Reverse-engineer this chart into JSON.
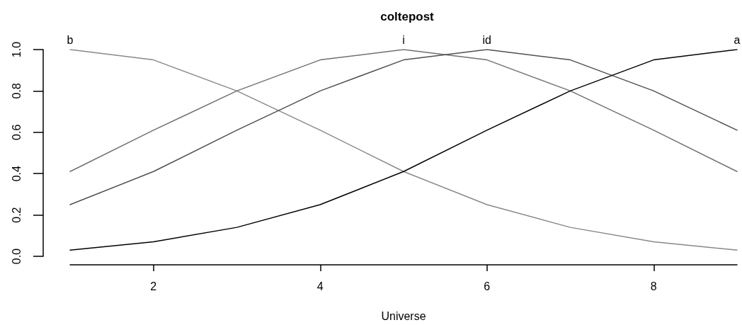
{
  "chart_data": {
    "type": "line",
    "title": "coltepost",
    "xlabel": "Universe",
    "x": [
      1,
      2,
      3,
      4,
      5,
      6,
      7,
      8,
      9
    ],
    "series": [
      {
        "name": "b",
        "color": "#888888",
        "values": [
          1.0,
          0.95,
          0.8,
          0.61,
          0.41,
          0.25,
          0.14,
          0.07,
          0.03
        ]
      },
      {
        "name": "i",
        "color": "#707070",
        "values": [
          0.41,
          0.61,
          0.8,
          0.95,
          1.0,
          0.95,
          0.8,
          0.61,
          0.41
        ]
      },
      {
        "name": "id",
        "color": "#505050",
        "values": [
          0.25,
          0.41,
          0.61,
          0.8,
          0.95,
          1.0,
          0.95,
          0.8,
          0.61
        ]
      },
      {
        "name": "a",
        "color": "#000000",
        "values": [
          0.03,
          0.07,
          0.14,
          0.25,
          0.41,
          0.61,
          0.8,
          0.95,
          1.0
        ]
      }
    ],
    "xlim": [
      1,
      9
    ],
    "xticks": [
      2,
      4,
      6,
      8
    ],
    "ylim": [
      0,
      1
    ],
    "yticks": [
      {
        "value": 0,
        "label": "0.0"
      },
      0.2,
      0.4,
      0.6,
      0.8,
      {
        "value": 1,
        "label": "1.0"
      }
    ],
    "marker": "none",
    "line_style": "solid"
  }
}
